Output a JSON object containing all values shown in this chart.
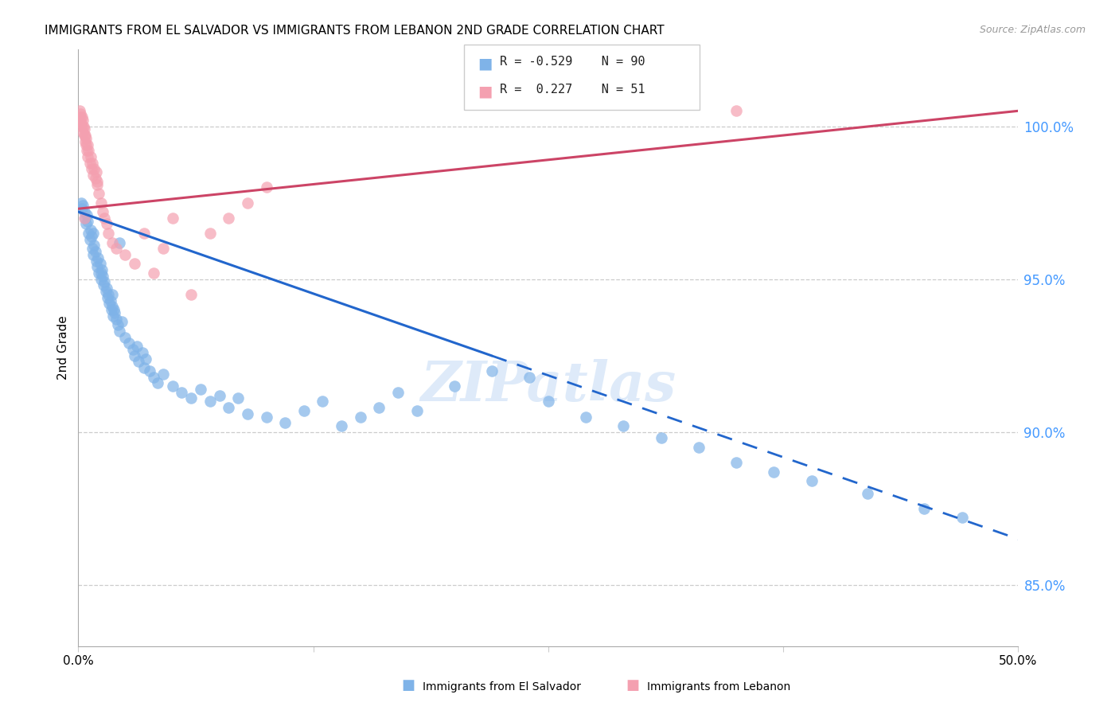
{
  "title": "IMMIGRANTS FROM EL SALVADOR VS IMMIGRANTS FROM LEBANON 2ND GRADE CORRELATION CHART",
  "source": "Source: ZipAtlas.com",
  "ylabel": "2nd Grade",
  "xlim": [
    0.0,
    50.0
  ],
  "ylim": [
    83.0,
    102.5
  ],
  "yticks": [
    85.0,
    90.0,
    95.0,
    100.0
  ],
  "ytick_labels": [
    "85.0%",
    "90.0%",
    "95.0%",
    "100.0%"
  ],
  "blue_color": "#7fb3e8",
  "pink_color": "#f4a0b0",
  "trend_blue": "#2266cc",
  "trend_pink": "#cc4466",
  "watermark": "ZIPatlas",
  "watermark_color": "#c8ddf5",
  "blue_r": "-0.529",
  "blue_n": "90",
  "pink_r": "0.227",
  "pink_n": "51",
  "blue_trend_x0": 0.0,
  "blue_trend_y0": 97.2,
  "blue_trend_x1": 50.0,
  "blue_trend_y1": 86.5,
  "blue_solid_end_x": 22.0,
  "pink_trend_x0": 0.0,
  "pink_trend_y0": 97.3,
  "pink_trend_x1": 50.0,
  "pink_trend_y1": 100.5,
  "blue_x": [
    0.15,
    0.2,
    0.25,
    0.3,
    0.35,
    0.4,
    0.45,
    0.5,
    0.55,
    0.6,
    0.65,
    0.7,
    0.75,
    0.8,
    0.85,
    0.9,
    0.95,
    1.0,
    1.05,
    1.1,
    1.15,
    1.2,
    1.25,
    1.3,
    1.35,
    1.4,
    1.45,
    1.5,
    1.55,
    1.6,
    1.65,
    1.7,
    1.75,
    1.8,
    1.85,
    1.9,
    1.95,
    2.0,
    2.1,
    2.2,
    2.3,
    2.5,
    2.7,
    2.9,
    3.0,
    3.1,
    3.2,
    3.4,
    3.5,
    3.6,
    3.8,
    4.0,
    4.2,
    4.5,
    5.0,
    5.5,
    6.0,
    6.5,
    7.0,
    7.5,
    8.0,
    8.5,
    9.0,
    10.0,
    11.0,
    12.0,
    13.0,
    14.0,
    15.0,
    16.0,
    17.0,
    18.0,
    20.0,
    22.0,
    24.0,
    25.0,
    27.0,
    29.0,
    31.0,
    33.0,
    35.0,
    37.0,
    39.0,
    42.0,
    45.0,
    47.0,
    0.8,
    1.2,
    1.8,
    2.2
  ],
  "blue_y": [
    97.5,
    97.3,
    97.4,
    97.2,
    97.0,
    96.8,
    97.1,
    96.9,
    96.5,
    96.3,
    96.6,
    96.4,
    96.0,
    95.8,
    96.1,
    95.9,
    95.6,
    95.4,
    95.7,
    95.2,
    95.5,
    95.0,
    95.3,
    95.1,
    94.8,
    94.9,
    94.6,
    94.7,
    94.4,
    94.5,
    94.2,
    94.3,
    94.0,
    94.1,
    93.8,
    94.0,
    93.9,
    93.7,
    93.5,
    93.3,
    93.6,
    93.1,
    92.9,
    92.7,
    92.5,
    92.8,
    92.3,
    92.6,
    92.1,
    92.4,
    92.0,
    91.8,
    91.6,
    91.9,
    91.5,
    91.3,
    91.1,
    91.4,
    91.0,
    91.2,
    90.8,
    91.1,
    90.6,
    90.5,
    90.3,
    90.7,
    91.0,
    90.2,
    90.5,
    90.8,
    91.3,
    90.7,
    91.5,
    92.0,
    91.8,
    91.0,
    90.5,
    90.2,
    89.8,
    89.5,
    89.0,
    88.7,
    88.4,
    88.0,
    87.5,
    87.2,
    96.5,
    95.2,
    94.5,
    96.2
  ],
  "pink_x": [
    0.05,
    0.08,
    0.1,
    0.12,
    0.15,
    0.18,
    0.2,
    0.22,
    0.25,
    0.28,
    0.3,
    0.32,
    0.35,
    0.38,
    0.4,
    0.42,
    0.45,
    0.48,
    0.5,
    0.55,
    0.6,
    0.65,
    0.7,
    0.75,
    0.8,
    0.85,
    0.9,
    0.95,
    1.0,
    1.1,
    1.2,
    1.3,
    1.4,
    1.5,
    1.6,
    1.8,
    2.0,
    2.5,
    3.0,
    3.5,
    4.0,
    4.5,
    5.0,
    6.0,
    7.0,
    8.0,
    9.0,
    10.0,
    35.0,
    1.0,
    0.3
  ],
  "pink_y": [
    100.2,
    100.5,
    100.3,
    100.4,
    100.1,
    100.3,
    100.0,
    100.2,
    99.8,
    100.0,
    99.7,
    99.9,
    99.5,
    99.7,
    99.4,
    99.6,
    99.2,
    99.4,
    99.0,
    99.2,
    98.8,
    99.0,
    98.6,
    98.8,
    98.4,
    98.6,
    98.3,
    98.5,
    98.1,
    97.8,
    97.5,
    97.2,
    97.0,
    96.8,
    96.5,
    96.2,
    96.0,
    95.8,
    95.5,
    96.5,
    95.2,
    96.0,
    97.0,
    94.5,
    96.5,
    97.0,
    97.5,
    98.0,
    100.5,
    98.2,
    97.0
  ]
}
